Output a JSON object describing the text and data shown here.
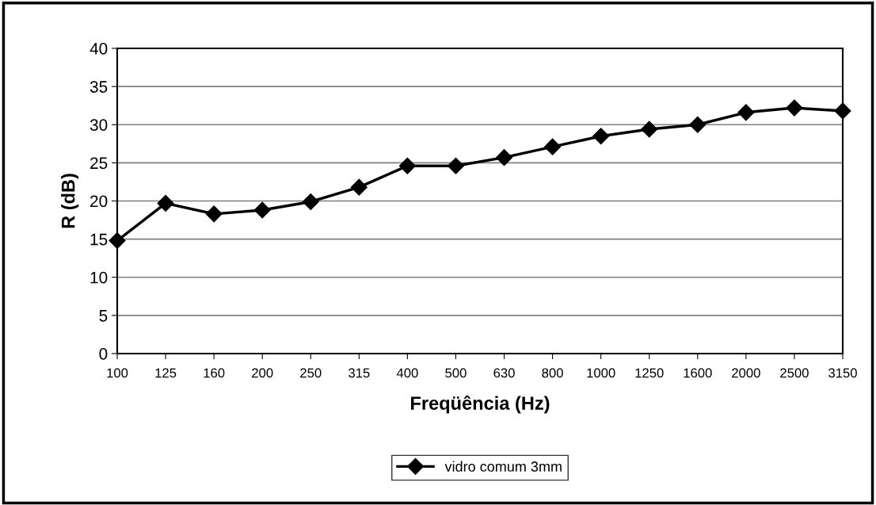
{
  "chart_data": {
    "type": "line",
    "xlabel": "Freqüência (Hz)",
    "ylabel": "R (dB)",
    "categories": [
      "100",
      "125",
      "160",
      "200",
      "250",
      "315",
      "400",
      "500",
      "630",
      "800",
      "1000",
      "1250",
      "1600",
      "2000",
      "2500",
      "3150"
    ],
    "series": [
      {
        "name": "vidro comum 3mm",
        "color": "#000000",
        "values": [
          14.8,
          19.7,
          18.3,
          18.8,
          19.9,
          21.8,
          24.6,
          24.6,
          25.7,
          27.1,
          28.5,
          29.4,
          30.0,
          31.6,
          32.2,
          31.8
        ]
      }
    ],
    "ylim": [
      0,
      40
    ],
    "yticks": [
      0,
      5,
      10,
      15,
      20,
      25,
      30,
      35,
      40
    ],
    "grid": "y",
    "legend": "bottom",
    "marker": "diamond",
    "line_style": "solid"
  }
}
